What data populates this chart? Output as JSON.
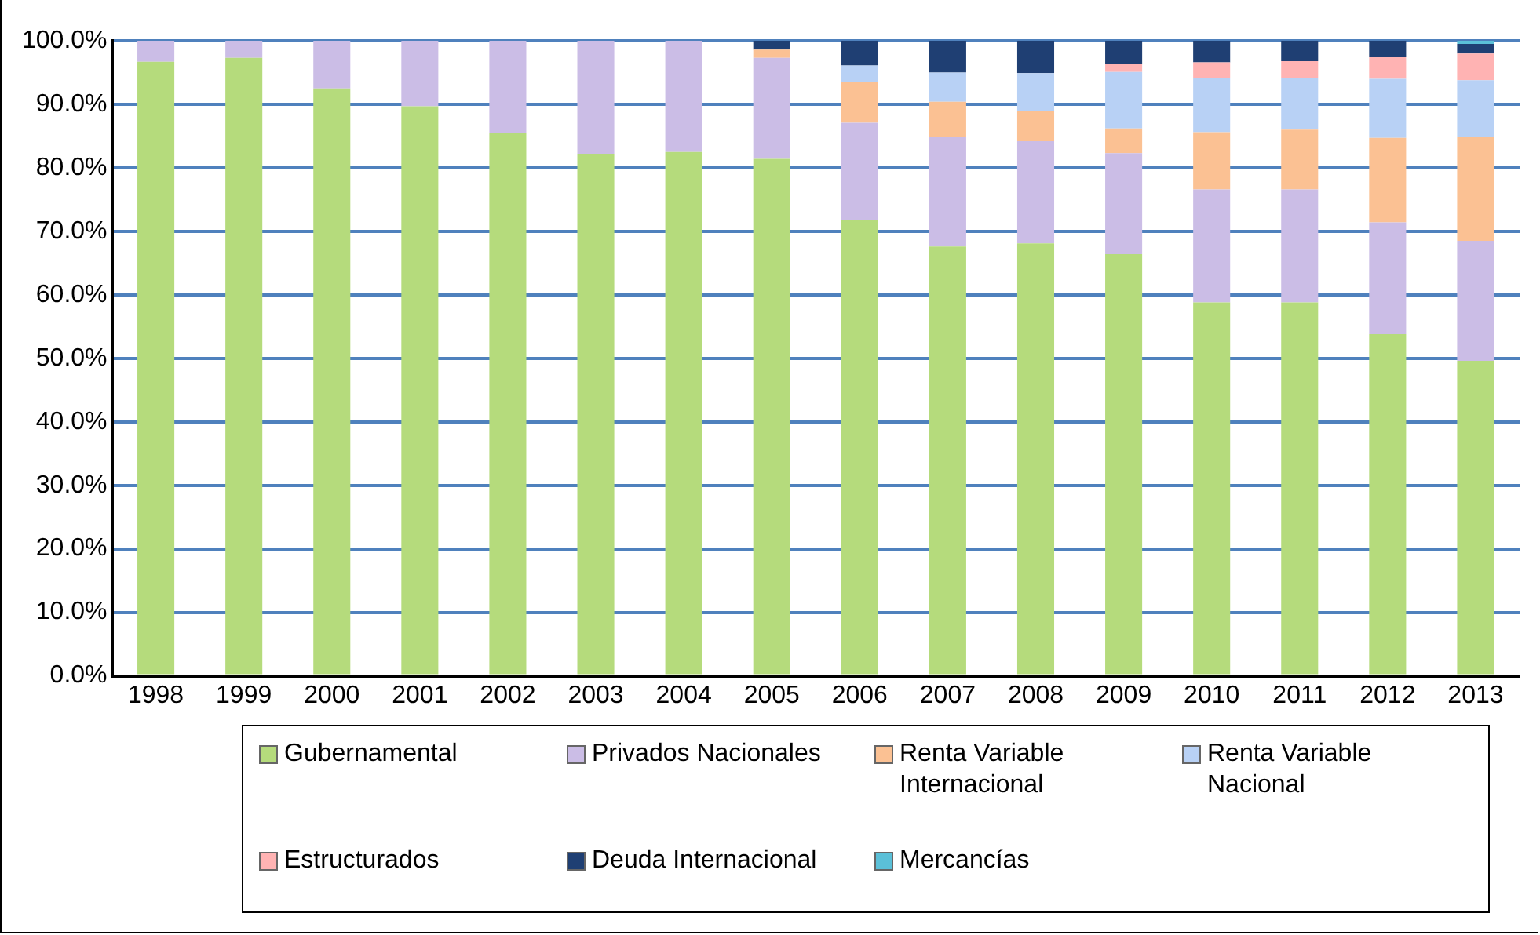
{
  "chart_data": {
    "type": "bar",
    "stacked": true,
    "grid": "y",
    "legend": "bottom",
    "categories": [
      "1998",
      "1999",
      "2000",
      "2001",
      "2002",
      "2003",
      "2004",
      "2005",
      "2006",
      "2007",
      "2008",
      "2009",
      "2010",
      "2011",
      "2012",
      "2013"
    ],
    "ylim": [
      0,
      100
    ],
    "yticks": [
      {
        "value": 0,
        "label": "0.0%"
      },
      {
        "value": 10,
        "label": "10.0%"
      },
      {
        "value": 20,
        "label": "20.0%"
      },
      {
        "value": 30,
        "label": "30.0%"
      },
      {
        "value": 40,
        "label": "40.0%"
      },
      {
        "value": 50,
        "label": "50.0%"
      },
      {
        "value": 60,
        "label": "60.0%"
      },
      {
        "value": 70,
        "label": "70.0%"
      },
      {
        "value": 80,
        "label": "80.0%"
      },
      {
        "value": 90,
        "label": "90.0%"
      },
      {
        "value": 100,
        "label": "100.0%"
      }
    ],
    "series": [
      {
        "name": "Gubernamental",
        "color": "#b5db7c",
        "values": [
          96.7,
          97.3,
          92.5,
          89.7,
          85.5,
          82.2,
          82.5,
          81.4,
          71.8,
          67.6,
          68.1,
          66.4,
          58.8,
          58.8,
          53.8,
          49.6
        ]
      },
      {
        "name": "Privados Nacionales",
        "color": "#cbbde6",
        "values": [
          3.3,
          2.7,
          7.5,
          10.3,
          14.5,
          17.8,
          17.5,
          15.9,
          15.3,
          17.2,
          16.1,
          15.9,
          17.8,
          17.8,
          17.6,
          18.9
        ]
      },
      {
        "name": "Renta Variable Internacional",
        "color": "#fbc193",
        "values": [
          0,
          0,
          0,
          0,
          0,
          0,
          0,
          1.3,
          6.4,
          5.6,
          4.7,
          3.9,
          9.0,
          9.4,
          13.3,
          16.3
        ]
      },
      {
        "name": "Renta Variable Nacional",
        "color": "#b8d1f5",
        "values": [
          0,
          0,
          0,
          0,
          0,
          0,
          0,
          0,
          2.6,
          4.6,
          6.0,
          8.9,
          8.6,
          8.2,
          9.3,
          9.0
        ]
      },
      {
        "name": "Estructurados",
        "color": "#ffb3b3",
        "values": [
          0,
          0,
          0,
          0,
          0,
          0,
          0,
          0,
          0,
          0,
          null,
          1.3,
          2.4,
          2.6,
          3.4,
          4.2
        ]
      },
      {
        "name": "Deuda Internacional",
        "color": "#1f3f73",
        "values": [
          0,
          0,
          0,
          0,
          0,
          0,
          0,
          1.4,
          3.9,
          5.0,
          5.1,
          3.6,
          3.4,
          3.2,
          2.6,
          1.5
        ]
      },
      {
        "name": "Mercancías",
        "color": "#5bc0d8",
        "values": [
          0,
          0,
          0,
          0,
          0,
          0,
          0,
          0,
          0,
          0,
          0,
          0,
          0,
          0,
          0,
          0.5
        ]
      }
    ]
  }
}
